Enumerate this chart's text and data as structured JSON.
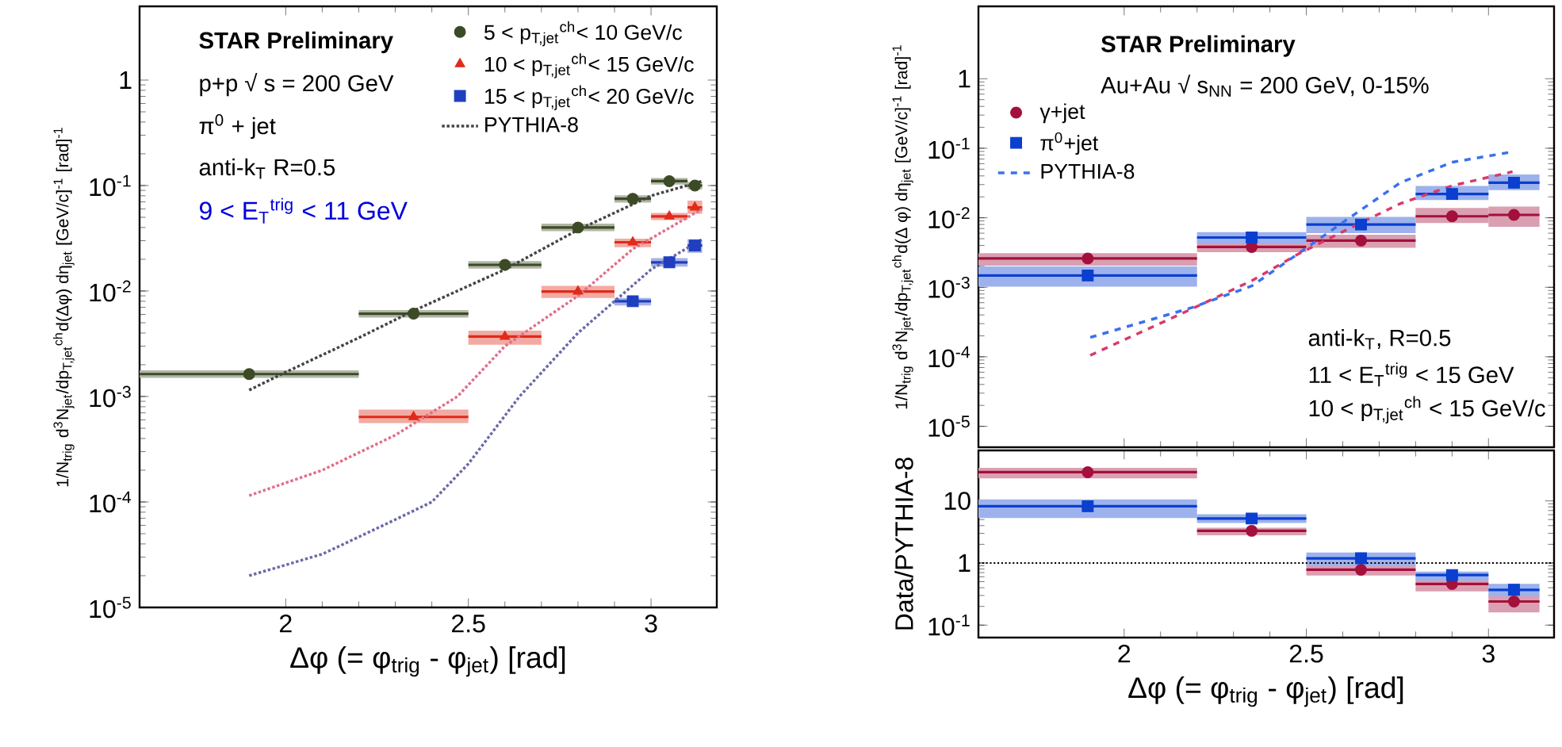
{
  "chart_data": [
    {
      "type": "scatter",
      "xlabel": "Δφ (= φ$_{trig}$ - φ$_{jet}$) [rad]",
      "ylabel": "1/N$_{trig}$ d$^{3}$N$_{jet}$/dp$_{T,jet}$$^{ch}$d(Δφ) dη$_{jet}$ [GeV/c]$^{-1}$ [rad]$^{-1}$",
      "annotations": [
        "**STAR Preliminary**",
        "p+p √ s = 200 GeV",
        "π$^{0}$ + jet",
        "anti-k$_{T}$ R=0.5",
        "9 < E$_{T}$$^{trig}$ < 11 GeV"
      ],
      "xlim": [
        1.6,
        3.18
      ],
      "ylim": [
        1e-05,
        5
      ],
      "xticks": [
        2,
        2.5,
        3
      ],
      "yticks": [
        {
          "value": 1e-05,
          "label": "10$^{-5}$"
        },
        {
          "value": 0.0001,
          "label": "10$^{-4}$"
        },
        {
          "value": 0.001,
          "label": "10$^{-3}$"
        },
        {
          "value": 0.01,
          "label": "10$^{-2}$"
        },
        {
          "value": 0.1,
          "label": "10$^{-1}$"
        },
        1
      ],
      "log": true,
      "legend": "top right",
      "series": [
        {
          "name": "5 < p$_{T,jet}$$^{ch}$< 10 GeV/c",
          "type": "scatter",
          "marker": "circle",
          "color": "#3d4a26",
          "x": [
            1.9,
            2.35,
            2.6,
            2.8,
            2.95,
            3.05,
            3.12
          ],
          "values": [
            0.00163,
            0.0061,
            0.0177,
            0.04,
            0.075,
            0.11,
            0.1
          ],
          "xerrors": [
            [
              1.6,
              2.2
            ],
            [
              2.2,
              2.5
            ],
            [
              2.5,
              2.7
            ],
            [
              2.7,
              2.9
            ],
            [
              2.9,
              3.0
            ],
            [
              3.0,
              3.1
            ],
            [
              3.1,
              3.14
            ]
          ],
          "errors": [
            [
              0.0015,
              0.00177
            ],
            [
              0.0056,
              0.0066
            ],
            [
              0.0163,
              0.0192
            ],
            [
              0.037,
              0.0435
            ],
            [
              0.069,
              0.081
            ],
            [
              0.102,
              0.118
            ],
            [
              0.092,
              0.108
            ]
          ]
        },
        {
          "name": "10 < p$_{T,jet}$$^{ch}$< 15 GeV/c",
          "type": "scatter",
          "marker": "triangle",
          "color": "#e02a1a",
          "x": [
            2.35,
            2.6,
            2.8,
            2.95,
            3.05,
            3.12
          ],
          "values": [
            0.00064,
            0.0037,
            0.0099,
            0.029,
            0.051,
            0.062
          ],
          "xerrors": [
            [
              2.2,
              2.5
            ],
            [
              2.5,
              2.7
            ],
            [
              2.7,
              2.9
            ],
            [
              2.9,
              3.0
            ],
            [
              3.0,
              3.1
            ],
            [
              3.1,
              3.14
            ]
          ],
          "errors": [
            [
              0.00056,
              0.00075
            ],
            [
              0.0031,
              0.0042
            ],
            [
              0.0086,
              0.0112
            ],
            [
              0.026,
              0.0314
            ],
            [
              0.047,
              0.055
            ],
            [
              0.054,
              0.072
            ]
          ]
        },
        {
          "name": "15 < p$_{T,jet}$$^{ch}$< 20 GeV/c",
          "type": "scatter",
          "marker": "square",
          "color": "#1f3fbf",
          "x": [
            2.95,
            3.05,
            3.12
          ],
          "values": [
            0.008,
            0.0187,
            0.027
          ],
          "xerrors": [
            [
              2.9,
              3.0
            ],
            [
              3.0,
              3.1
            ],
            [
              3.1,
              3.14
            ]
          ],
          "errors": [
            [
              0.0073,
              0.0086
            ],
            [
              0.017,
              0.0205
            ],
            [
              0.023,
              0.031
            ]
          ]
        },
        {
          "name": "PYTHIA-8",
          "type": "line",
          "marker": "none",
          "line_style": "dotted",
          "color": "#444444",
          "x": [
            1.9,
            2.0,
            2.2,
            2.35,
            2.6,
            2.8,
            3.0,
            3.14
          ],
          "values": [
            0.00115,
            0.0017,
            0.0036,
            0.0065,
            0.016,
            0.038,
            0.08,
            0.11
          ]
        },
        {
          "type": "line",
          "marker": "none",
          "line_style": "dotted",
          "color": "#e0708a",
          "x": [
            1.9,
            2.1,
            2.3,
            2.47,
            2.6,
            2.8,
            2.95,
            3.14
          ],
          "values": [
            0.000115,
            0.0002,
            0.00043,
            0.001,
            0.003,
            0.009,
            0.025,
            0.06
          ]
        },
        {
          "type": "line",
          "marker": "none",
          "line_style": "dotted",
          "color": "#6a6aa8",
          "x": [
            1.9,
            2.1,
            2.3,
            2.4,
            2.5,
            2.64,
            2.8,
            2.9,
            3.0,
            3.14
          ],
          "values": [
            2e-05,
            3.2e-05,
            6.8e-05,
            0.0001,
            0.00023,
            0.001,
            0.004,
            0.008,
            0.016,
            0.031
          ]
        }
      ]
    },
    {
      "type": "scatter",
      "ylabel": "1/N$_{trig}$ d$^{3}$N$_{jet}$/dp$_{T,jet}$$^{ch}$d(Δ φ) dη$_{jet}$ [GeV/c]$^{-1}$ [rad]$^{-1}$",
      "annotations": [
        "**STAR Preliminary**",
        "Au+Au √ s$_{NN}$ = 200 GeV, 0-15%",
        "anti-k$_{T}$, R=0.5",
        "11 < E$_{T}$$^{trig}$ < 15 GeV",
        "10 < p$_{T,jet}$$^{ch}$ < 15 GeV/c"
      ],
      "xlim": [
        1.6,
        3.18
      ],
      "ylim": [
        5e-06,
        11
      ],
      "xticks": [
        2,
        2.5,
        3
      ],
      "yticks": [
        {
          "value": 1e-05,
          "label": "10$^{-5}$"
        },
        {
          "value": 0.0001,
          "label": "10$^{-4}$"
        },
        {
          "value": 0.001,
          "label": "10$^{-3}$"
        },
        {
          "value": 0.01,
          "label": "10$^{-2}$"
        },
        {
          "value": 0.1,
          "label": "10$^{-1}$"
        },
        1
      ],
      "log": true,
      "legend": "top left",
      "tick_labels": "y",
      "series": [
        {
          "name": "γ+jet",
          "type": "scatter",
          "marker": "circle",
          "color": "#a3103c",
          "x": [
            1.9,
            2.35,
            2.65,
            2.9,
            3.07
          ],
          "values": [
            0.0026,
            0.0038,
            0.0047,
            0.0105,
            0.011
          ],
          "xerrors": [
            [
              1.6,
              2.2
            ],
            [
              2.2,
              2.5
            ],
            [
              2.5,
              2.8
            ],
            [
              2.8,
              3.0
            ],
            [
              3.0,
              3.14
            ]
          ],
          "errors": [
            [
              0.00205,
              0.0031
            ],
            [
              0.0032,
              0.005
            ],
            [
              0.0037,
              0.0057
            ],
            [
              0.0084,
              0.0138
            ],
            [
              0.0074,
              0.0145
            ]
          ]
        },
        {
          "name": "π$^{0}$+jet",
          "type": "scatter",
          "marker": "square",
          "color": "#0a3fd0",
          "x": [
            1.9,
            2.35,
            2.65,
            2.9,
            3.07
          ],
          "values": [
            0.00148,
            0.0052,
            0.008,
            0.022,
            0.032
          ],
          "xerrors": [
            [
              1.6,
              2.2
            ],
            [
              2.2,
              2.5
            ],
            [
              2.5,
              2.8
            ],
            [
              2.8,
              3.0
            ],
            [
              3.0,
              3.14
            ]
          ],
          "errors": [
            [
              0.00102,
              0.002
            ],
            [
              0.00425,
              0.0062
            ],
            [
              0.006,
              0.0103
            ],
            [
              0.018,
              0.0287
            ],
            [
              0.025,
              0.042
            ]
          ]
        },
        {
          "name": "PYTHIA-8",
          "type": "line",
          "marker": "none",
          "line_style": "dashed",
          "color": "#3a70f0",
          "x": [
            1.907,
            2.186,
            2.351,
            2.472,
            2.615,
            2.758,
            2.901,
            3.066
          ],
          "values": [
            0.00019,
            0.00051,
            0.00105,
            0.0029,
            0.0097,
            0.032,
            0.063,
            0.089
          ]
        },
        {
          "type": "line",
          "marker": "none",
          "line_style": "dashed",
          "color": "#d83a6a",
          "x": [
            1.907,
            2.186,
            2.351,
            2.472,
            2.615,
            2.758,
            2.901,
            3.066
          ],
          "values": [
            0.000105,
            0.00049,
            0.00125,
            0.0029,
            0.0069,
            0.016,
            0.029,
            0.046
          ]
        }
      ]
    },
    {
      "type": "scatter",
      "xlabel": "Δφ (= φ$_{trig}$ - φ$_{jet}$) [rad]",
      "ylabel": "Data/PYTHIA-8",
      "xlim": [
        1.6,
        3.18
      ],
      "ylim": [
        0.063,
        65
      ],
      "xticks": [
        2,
        2.5,
        3
      ],
      "yticks": [
        {
          "value": 0.1,
          "label": "10$^{-1}$"
        },
        1,
        10
      ],
      "log": true,
      "ref_lines": [
        {
          "axis": "y",
          "value": 1,
          "line_style": "dotted",
          "color": "#000000"
        }
      ],
      "series": [
        {
          "type": "scatter",
          "marker": "circle",
          "color": "#a3103c",
          "x": [
            1.9,
            2.35,
            2.65,
            2.9,
            3.07
          ],
          "values": [
            29,
            3.3,
            0.78,
            0.46,
            0.24
          ],
          "xerrors": [
            [
              1.6,
              2.2
            ],
            [
              2.2,
              2.5
            ],
            [
              2.5,
              2.8
            ],
            [
              2.8,
              3.0
            ],
            [
              3.0,
              3.14
            ]
          ],
          "errors": [
            [
              23,
              34
            ],
            [
              2.8,
              3.7
            ],
            [
              0.63,
              0.94
            ],
            [
              0.35,
              0.58
            ],
            [
              0.16,
              0.31
            ]
          ]
        },
        {
          "type": "scatter",
          "marker": "square",
          "color": "#0a3fd0",
          "x": [
            1.9,
            2.35,
            2.65,
            2.9,
            3.07
          ],
          "values": [
            8.2,
            5.2,
            1.19,
            0.64,
            0.37
          ],
          "xerrors": [
            [
              1.6,
              2.2
            ],
            [
              2.2,
              2.5
            ],
            [
              2.5,
              2.8
            ],
            [
              2.8,
              3.0
            ],
            [
              3.0,
              3.14
            ]
          ],
          "errors": [
            [
              5.3,
              10.6
            ],
            [
              4.4,
              6.1
            ],
            [
              0.89,
              1.48
            ],
            [
              0.52,
              0.73
            ],
            [
              0.29,
              0.46
            ]
          ]
        }
      ]
    }
  ]
}
